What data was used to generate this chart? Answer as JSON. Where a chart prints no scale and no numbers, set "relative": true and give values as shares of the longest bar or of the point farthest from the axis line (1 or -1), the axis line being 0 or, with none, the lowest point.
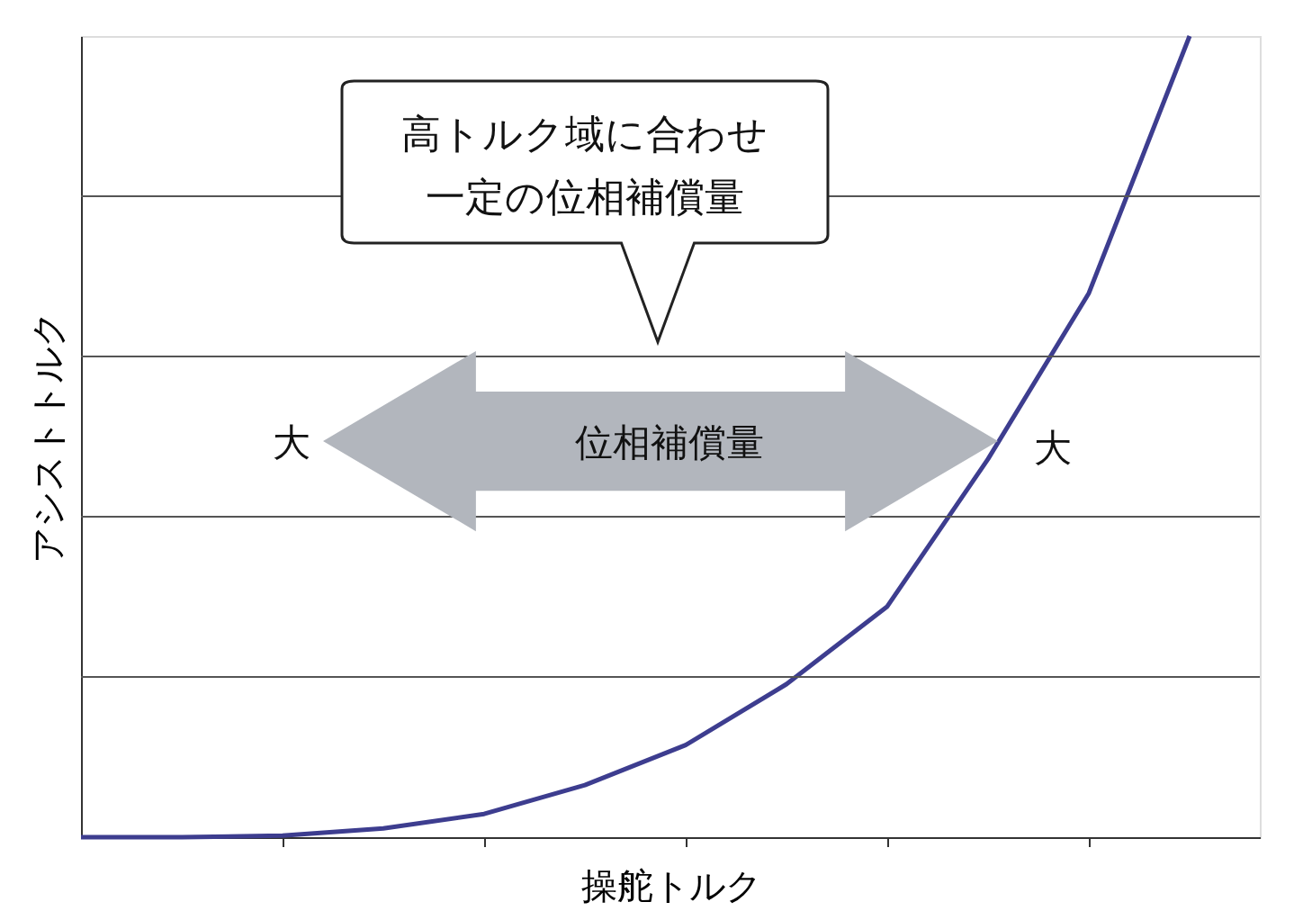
{
  "chart_data": {
    "type": "line",
    "relative": true,
    "xlabel": "操舵トルク",
    "ylabel": "アシストトルク",
    "categories": [
      null,
      null,
      null,
      null,
      null,
      null,
      null,
      null,
      null,
      null,
      null,
      null
    ],
    "series": [
      {
        "color": "#3d3d8f",
        "values": [
          0,
          0,
          0.002,
          0.011,
          0.029,
          0.065,
          0.115,
          0.191,
          0.288,
          0.472,
          0.679,
          1
        ]
      }
    ],
    "annotations": [
      "高トルク域に合わせ",
      "一定の位相補償量",
      "位相補償量",
      "大",
      "大"
    ],
    "grid": "y",
    "marker": "none",
    "line_style": "solid",
    "legend": false
  }
}
